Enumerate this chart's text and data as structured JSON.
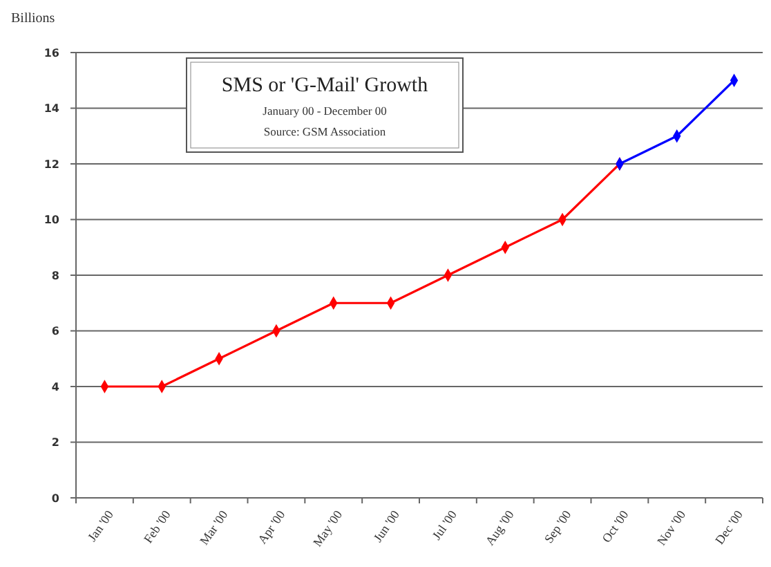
{
  "chart_data": {
    "type": "line",
    "title": "SMS or 'G-Mail' Growth",
    "subtitle": "January 00 - December 00",
    "annotations": [
      "Source: GSM Association"
    ],
    "ylabel": "Billions",
    "categories": [
      "Jan '00",
      "Feb '00",
      "Mar '00",
      "Apr '00",
      "May '00",
      "Jun '00",
      "Jul '00",
      "Aug '00",
      "Sep '00",
      "Oct '00",
      "Nov '00",
      "Dec '00"
    ],
    "series": [
      {
        "color": "#ff0000",
        "values": [
          4,
          4,
          5,
          6,
          7,
          7,
          8,
          9,
          10,
          12,
          null,
          null
        ]
      },
      {
        "color": "#0000ff",
        "values": [
          null,
          null,
          null,
          null,
          null,
          null,
          null,
          null,
          null,
          12,
          13,
          15
        ]
      }
    ],
    "ylim": [
      0,
      16
    ],
    "yticks": [
      0,
      2,
      4,
      6,
      8,
      10,
      12,
      14,
      16
    ],
    "grid": "y",
    "marker": "diamond",
    "line_style": "solid"
  }
}
